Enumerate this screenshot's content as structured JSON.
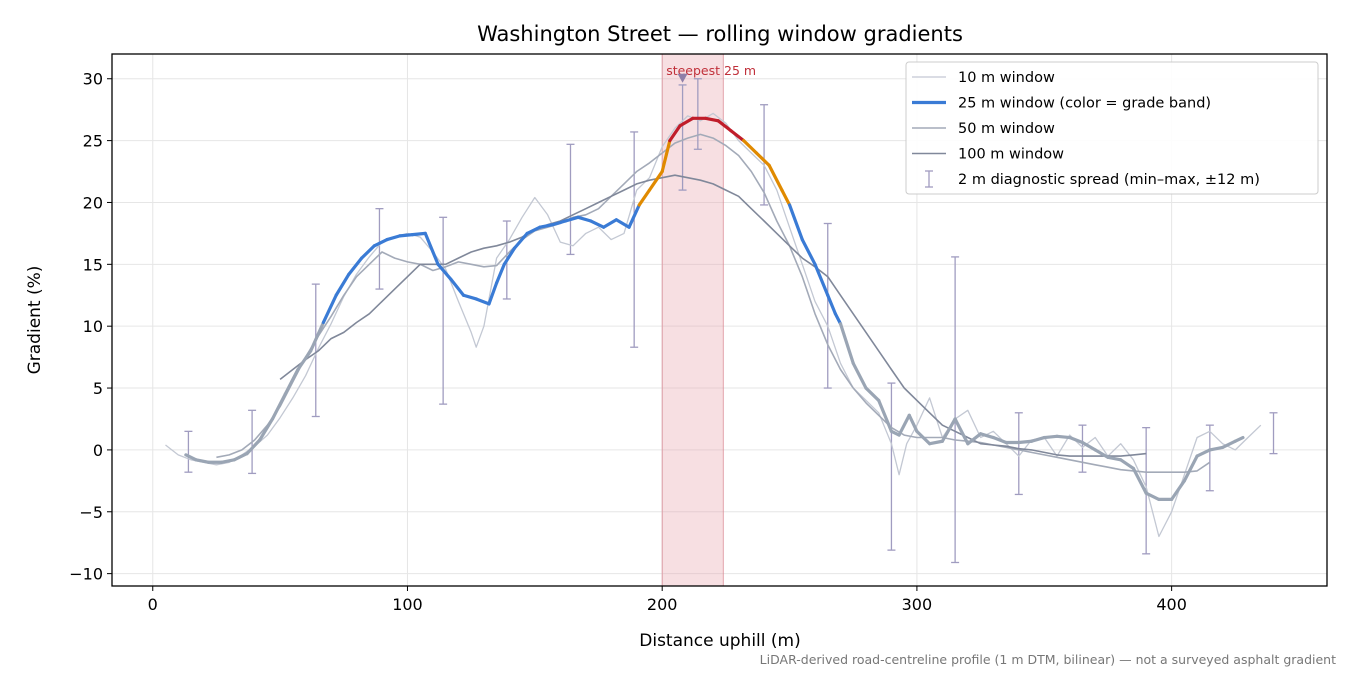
{
  "chart_data": {
    "type": "line",
    "title": "Washington Street — rolling window gradients",
    "xlabel": "Distance uphill (m)",
    "ylabel": "Gradient (%)",
    "xlim": [
      -16,
      461
    ],
    "ylim": [
      -11,
      32
    ],
    "xticks": [
      0,
      100,
      200,
      300,
      400
    ],
    "yticks": [
      -10,
      -5,
      0,
      5,
      10,
      15,
      20,
      25,
      30
    ],
    "grid": true,
    "legend_position": "top-right",
    "footnote": "LiDAR-derived road-centreline profile (1 m DTM, bilinear) — not a surveyed asphalt gradient",
    "steepest": {
      "label": "steepest 25 m",
      "x_start": 200,
      "x_end": 224,
      "marker_x": 208,
      "marker_y": 30
    },
    "grade_band_colors": {
      "low": "#3a7bd5",
      "mid": "#e08a00",
      "high": "#c01d2a",
      "flat": "#9aa5b4"
    },
    "series": [
      {
        "name": "10 m window",
        "color": "#c3c8d3",
        "width": 1.3,
        "x": [
          5,
          10,
          15,
          20,
          25,
          30,
          35,
          40,
          45,
          50,
          55,
          60,
          65,
          70,
          75,
          80,
          85,
          90,
          95,
          100,
          105,
          110,
          115,
          120,
          125,
          127,
          130,
          135,
          140,
          145,
          150,
          155,
          160,
          165,
          170,
          175,
          180,
          185,
          190,
          195,
          200,
          205,
          210,
          215,
          220,
          225,
          230,
          235,
          240,
          245,
          250,
          255,
          260,
          265,
          270,
          275,
          280,
          285,
          290,
          293,
          296,
          300,
          305,
          310,
          315,
          320,
          325,
          330,
          335,
          340,
          345,
          350,
          355,
          360,
          365,
          370,
          375,
          380,
          385,
          390,
          395,
          400,
          405,
          410,
          415,
          420,
          425,
          430,
          435
        ],
        "y": [
          0.4,
          -0.4,
          -0.8,
          -1.0,
          -1.2,
          -1.0,
          -0.4,
          0.3,
          1.2,
          2.6,
          4.2,
          6.0,
          8.2,
          10.2,
          12.4,
          14.2,
          15.6,
          16.8,
          17.2,
          17.5,
          17.2,
          16.0,
          14.6,
          12.0,
          9.5,
          8.3,
          10.0,
          15.5,
          17.0,
          18.8,
          20.4,
          19.0,
          16.8,
          16.5,
          17.5,
          18.0,
          17.0,
          17.5,
          21.0,
          22.0,
          24.5,
          26.0,
          27.0,
          26.6,
          27.2,
          26.4,
          25.0,
          24.0,
          23.0,
          21.0,
          18.0,
          15.0,
          12.0,
          10.0,
          7.0,
          5.0,
          4.0,
          3.0,
          0.5,
          -2.0,
          0.5,
          2.0,
          4.2,
          1.0,
          2.5,
          3.2,
          1.0,
          1.5,
          0.5,
          -0.5,
          0.8,
          1.0,
          -0.5,
          1.2,
          0.2,
          1.0,
          -0.5,
          0.5,
          -0.8,
          -3.0,
          -7.0,
          -5.0,
          -2.0,
          1.0,
          1.5,
          0.5,
          0.0,
          1.0,
          2.0
        ]
      },
      {
        "name": "25 m window (color = grade band)",
        "color": "#3a7bd5",
        "width": 3.2,
        "x": [
          13,
          17,
          22,
          27,
          32,
          37,
          42,
          47,
          52,
          57,
          62,
          67,
          72,
          77,
          82,
          87,
          92,
          97,
          102,
          107,
          112,
          117,
          122,
          127,
          132,
          135,
          138,
          142,
          147,
          152,
          157,
          162,
          167,
          172,
          177,
          182,
          187,
          191,
          195,
          200,
          203,
          207,
          212,
          217,
          222,
          227,
          232,
          237,
          242,
          247,
          250,
          255,
          260,
          265,
          268,
          270,
          275,
          280,
          285,
          290,
          293,
          297,
          300,
          305,
          310,
          315,
          320,
          325,
          330,
          335,
          340,
          345,
          350,
          355,
          360,
          365,
          370,
          375,
          380,
          385,
          390,
          395,
          400,
          405,
          410,
          415,
          420,
          425,
          428
        ],
        "y": [
          -0.4,
          -0.8,
          -1.0,
          -1.0,
          -0.8,
          -0.3,
          0.8,
          2.5,
          4.5,
          6.5,
          8.0,
          10.3,
          12.5,
          14.2,
          15.5,
          16.5,
          17.0,
          17.3,
          17.4,
          17.5,
          15.0,
          13.8,
          12.5,
          12.2,
          11.8,
          13.5,
          15.0,
          16.3,
          17.5,
          18.0,
          18.2,
          18.5,
          18.8,
          18.5,
          18.0,
          18.6,
          18.0,
          19.8,
          21.0,
          22.5,
          25.0,
          26.2,
          26.8,
          26.8,
          26.6,
          25.8,
          25.0,
          24.0,
          23.0,
          21.0,
          19.8,
          17.0,
          15.0,
          12.5,
          11.0,
          10.2,
          7.0,
          5.0,
          4.0,
          1.5,
          1.2,
          2.8,
          1.5,
          0.5,
          0.7,
          2.5,
          0.5,
          1.3,
          1.0,
          0.6,
          0.6,
          0.7,
          1.0,
          1.1,
          1.0,
          0.6,
          0.0,
          -0.6,
          -0.8,
          -1.5,
          -3.5,
          -4.0,
          -4.0,
          -2.5,
          -0.5,
          0.0,
          0.2,
          0.7,
          1.0
        ]
      },
      {
        "name": "50 m window",
        "color": "#a3aab8",
        "width": 1.6,
        "x": [
          25,
          30,
          35,
          40,
          45,
          50,
          55,
          60,
          65,
          70,
          75,
          80,
          85,
          90,
          95,
          100,
          105,
          110,
          115,
          120,
          125,
          130,
          135,
          140,
          145,
          150,
          155,
          160,
          165,
          170,
          175,
          180,
          185,
          190,
          195,
          200,
          205,
          210,
          215,
          220,
          225,
          230,
          235,
          240,
          245,
          250,
          255,
          260,
          265,
          270,
          275,
          280,
          285,
          290,
          295,
          300,
          305,
          310,
          315,
          320,
          325,
          330,
          335,
          340,
          345,
          350,
          355,
          360,
          365,
          370,
          375,
          380,
          385,
          390,
          395,
          400,
          405,
          410,
          415
        ],
        "y": [
          -0.6,
          -0.4,
          0.0,
          0.8,
          2.0,
          3.5,
          5.5,
          7.5,
          9.2,
          10.8,
          12.5,
          14.0,
          15.0,
          16.0,
          15.5,
          15.2,
          15.0,
          14.5,
          14.8,
          15.2,
          15.0,
          14.8,
          14.9,
          16.0,
          17.0,
          17.7,
          18.0,
          18.3,
          18.8,
          19.0,
          19.5,
          20.5,
          21.5,
          22.5,
          23.2,
          24.0,
          24.8,
          25.2,
          25.5,
          25.2,
          24.6,
          23.8,
          22.5,
          20.8,
          18.5,
          16.5,
          14.0,
          11.0,
          8.5,
          6.5,
          5.0,
          3.8,
          2.8,
          1.8,
          1.2,
          1.0,
          1.0,
          1.0,
          0.8,
          0.7,
          0.6,
          0.4,
          0.2,
          0.0,
          -0.2,
          -0.4,
          -0.6,
          -0.8,
          -1.0,
          -1.2,
          -1.4,
          -1.6,
          -1.7,
          -1.8,
          -1.8,
          -1.8,
          -1.8,
          -1.7,
          -1.0
        ]
      },
      {
        "name": "100 m window",
        "color": "#80889a",
        "width": 1.6,
        "x": [
          50,
          55,
          60,
          65,
          70,
          75,
          80,
          85,
          90,
          95,
          100,
          105,
          110,
          115,
          120,
          125,
          130,
          135,
          140,
          145,
          150,
          155,
          160,
          165,
          170,
          175,
          180,
          185,
          190,
          195,
          200,
          205,
          210,
          215,
          220,
          225,
          230,
          235,
          240,
          245,
          250,
          255,
          260,
          265,
          270,
          275,
          280,
          285,
          290,
          295,
          300,
          305,
          310,
          315,
          320,
          325,
          330,
          335,
          340,
          345,
          350,
          355,
          360,
          365,
          370,
          375,
          380,
          385,
          390
        ],
        "y": [
          5.7,
          6.5,
          7.3,
          8.0,
          9.0,
          9.5,
          10.3,
          11.0,
          12.0,
          13.0,
          14.0,
          15.0,
          15.0,
          15.0,
          15.5,
          16.0,
          16.3,
          16.5,
          16.8,
          17.2,
          17.8,
          18.2,
          18.5,
          19.0,
          19.5,
          20.0,
          20.5,
          21.0,
          21.5,
          21.8,
          22.0,
          22.2,
          22.0,
          21.8,
          21.5,
          21.0,
          20.5,
          19.5,
          18.5,
          17.5,
          16.5,
          15.5,
          14.8,
          14.0,
          12.5,
          11.0,
          9.5,
          8.0,
          6.5,
          5.0,
          4.0,
          3.0,
          2.0,
          1.5,
          1.0,
          0.5,
          0.4,
          0.3,
          0.1,
          0.0,
          -0.2,
          -0.4,
          -0.5,
          -0.5,
          -0.5,
          -0.5,
          -0.5,
          -0.4,
          -0.3
        ]
      }
    ],
    "error_bars": {
      "name": "2 m diagnostic spread (min–max, ±12 m)",
      "color": "#a09cc0",
      "points": [
        {
          "x": 14,
          "min": -1.8,
          "max": 1.5
        },
        {
          "x": 39,
          "min": -1.9,
          "max": 3.2
        },
        {
          "x": 64,
          "min": 2.7,
          "max": 13.4
        },
        {
          "x": 89,
          "min": 13.0,
          "max": 19.5
        },
        {
          "x": 114,
          "min": 3.7,
          "max": 18.8
        },
        {
          "x": 139,
          "min": 12.2,
          "max": 18.5
        },
        {
          "x": 164,
          "min": 15.8,
          "max": 24.7
        },
        {
          "x": 189,
          "min": 8.3,
          "max": 25.7
        },
        {
          "x": 208,
          "min": 21.0,
          "max": 29.5
        },
        {
          "x": 214,
          "min": 24.3,
          "max": 30.0
        },
        {
          "x": 240,
          "min": 19.8,
          "max": 27.9
        },
        {
          "x": 265,
          "min": 5.0,
          "max": 18.3
        },
        {
          "x": 290,
          "min": -8.1,
          "max": 5.4
        },
        {
          "x": 315,
          "min": -9.1,
          "max": 15.6
        },
        {
          "x": 340,
          "min": -3.6,
          "max": 3.0
        },
        {
          "x": 365,
          "min": -1.8,
          "max": 2.0
        },
        {
          "x": 390,
          "min": -8.4,
          "max": 1.8
        },
        {
          "x": 415,
          "min": -3.3,
          "max": 2.0
        },
        {
          "x": 440,
          "min": -0.3,
          "max": 3.0
        }
      ]
    }
  }
}
